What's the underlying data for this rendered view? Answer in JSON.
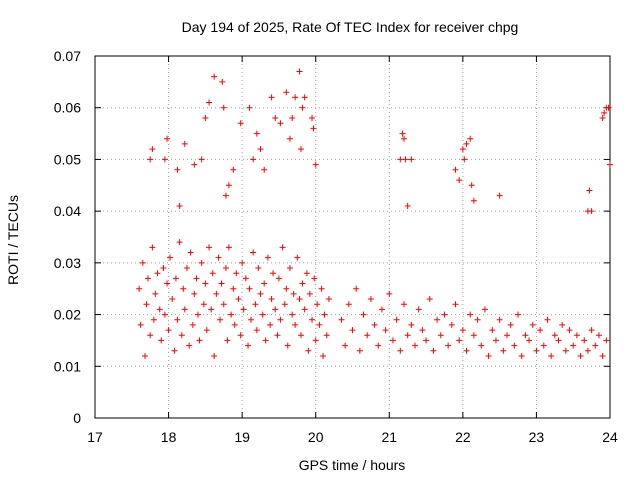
{
  "chart_data": {
    "type": "scatter",
    "title": "Day 194 of 2025, Rate Of TEC Index for receiver chpg",
    "xlabel": "GPS time / hours",
    "ylabel": "ROTI / TECUs",
    "xlim": [
      17,
      24
    ],
    "ylim": [
      0,
      0.07
    ],
    "xticks": [
      "17",
      "18",
      "19",
      "20",
      "21",
      "22",
      "23",
      "24"
    ],
    "yticks": [
      "0",
      "0.01",
      "0.02",
      "0.03",
      "0.04",
      "0.05",
      "0.06",
      "0.07"
    ],
    "grid": true,
    "marker": "plus",
    "color": "#ff0000",
    "series": [
      {
        "x": [
          17.6,
          17.62,
          17.65,
          17.68,
          17.7,
          17.72,
          17.75,
          17.78,
          17.8,
          17.82,
          17.85,
          17.88,
          17.9,
          17.93,
          17.95,
          17.98,
          18.0,
          18.02,
          18.05,
          18.08,
          18.1,
          18.12,
          18.15,
          18.18,
          18.2,
          18.22,
          18.25,
          18.28,
          18.3,
          18.33,
          18.35,
          18.38,
          18.4,
          18.42,
          18.45,
          18.48,
          18.5,
          18.52,
          18.55,
          18.58,
          18.6,
          18.62,
          18.65,
          18.68,
          18.7,
          18.72,
          18.75,
          18.78,
          18.8,
          18.82,
          18.85,
          18.88,
          18.9,
          18.92,
          18.95,
          18.98,
          19.0,
          19.02,
          19.05,
          19.08,
          19.1,
          19.12,
          19.15,
          19.18,
          19.2,
          19.22,
          19.25,
          19.28,
          19.3,
          19.32,
          19.35,
          19.38,
          19.4,
          19.42,
          19.45,
          19.48,
          19.5,
          19.52,
          19.55,
          19.58,
          19.6,
          19.62,
          19.65,
          19.68,
          19.7,
          19.72,
          19.75,
          19.78,
          19.8,
          19.82,
          19.85,
          19.88,
          19.9,
          19.92,
          19.95,
          19.98,
          20.0,
          20.02,
          20.05,
          20.08,
          20.1,
          20.12,
          20.15,
          20.18,
          20.35,
          20.4,
          20.45,
          20.5,
          20.55,
          20.6,
          20.65,
          20.7,
          20.75,
          20.8,
          20.85,
          20.9,
          20.95,
          21.0,
          21.05,
          21.1,
          21.15,
          21.2,
          21.25,
          21.3,
          21.35,
          21.4,
          21.45,
          21.5,
          21.55,
          21.6,
          21.65,
          21.7,
          21.75,
          21.8,
          21.85,
          21.9,
          21.95,
          22.0,
          22.05,
          22.1,
          22.15,
          22.2,
          22.25,
          22.3,
          22.35,
          22.4,
          22.45,
          22.5,
          22.55,
          22.6,
          22.65,
          22.7,
          22.75,
          22.8,
          22.85,
          22.9,
          22.95,
          23.0,
          23.05,
          23.1,
          23.15,
          23.2,
          23.25,
          23.3,
          23.35,
          23.4,
          23.45,
          23.5,
          23.55,
          23.6,
          23.65,
          23.7,
          23.75,
          23.8,
          23.85,
          23.9,
          23.95,
          24.0,
          17.75,
          17.78,
          17.95,
          17.98,
          18.12,
          18.15,
          18.22,
          18.35,
          18.45,
          18.5,
          18.55,
          18.62,
          18.73,
          18.75,
          18.78,
          18.82,
          18.88,
          18.98,
          19.1,
          19.15,
          19.2,
          19.25,
          19.3,
          19.4,
          19.45,
          19.52,
          19.6,
          19.65,
          19.68,
          19.72,
          19.78,
          19.8,
          19.82,
          19.85,
          19.95,
          19.97,
          20.0,
          21.15,
          21.18,
          21.2,
          21.22,
          21.25,
          21.3,
          21.9,
          21.95,
          22.0,
          22.02,
          22.05,
          22.1,
          22.12,
          22.15,
          22.5,
          23.7,
          23.72,
          23.75,
          23.9,
          23.92,
          23.95,
          23.98
        ],
        "y": [
          0.025,
          0.018,
          0.03,
          0.012,
          0.022,
          0.027,
          0.016,
          0.033,
          0.019,
          0.024,
          0.028,
          0.021,
          0.015,
          0.029,
          0.02,
          0.026,
          0.017,
          0.031,
          0.023,
          0.013,
          0.027,
          0.019,
          0.034,
          0.016,
          0.025,
          0.021,
          0.029,
          0.014,
          0.032,
          0.018,
          0.024,
          0.027,
          0.02,
          0.015,
          0.03,
          0.022,
          0.026,
          0.017,
          0.033,
          0.021,
          0.028,
          0.012,
          0.024,
          0.031,
          0.019,
          0.026,
          0.022,
          0.029,
          0.015,
          0.033,
          0.02,
          0.025,
          0.018,
          0.028,
          0.023,
          0.016,
          0.03,
          0.021,
          0.027,
          0.014,
          0.025,
          0.019,
          0.032,
          0.022,
          0.017,
          0.029,
          0.024,
          0.02,
          0.026,
          0.015,
          0.031,
          0.018,
          0.023,
          0.028,
          0.021,
          0.016,
          0.027,
          0.019,
          0.033,
          0.022,
          0.025,
          0.014,
          0.029,
          0.02,
          0.024,
          0.018,
          0.031,
          0.023,
          0.016,
          0.026,
          0.021,
          0.028,
          0.013,
          0.024,
          0.019,
          0.027,
          0.015,
          0.022,
          0.018,
          0.025,
          0.012,
          0.02,
          0.016,
          0.023,
          0.019,
          0.014,
          0.022,
          0.017,
          0.025,
          0.013,
          0.02,
          0.016,
          0.023,
          0.018,
          0.014,
          0.021,
          0.017,
          0.024,
          0.015,
          0.019,
          0.013,
          0.022,
          0.016,
          0.018,
          0.014,
          0.021,
          0.017,
          0.015,
          0.023,
          0.013,
          0.019,
          0.016,
          0.02,
          0.014,
          0.018,
          0.022,
          0.015,
          0.017,
          0.013,
          0.02,
          0.016,
          0.019,
          0.014,
          0.021,
          0.012,
          0.017,
          0.015,
          0.019,
          0.013,
          0.016,
          0.018,
          0.014,
          0.02,
          0.012,
          0.016,
          0.015,
          0.018,
          0.013,
          0.017,
          0.014,
          0.019,
          0.012,
          0.016,
          0.015,
          0.018,
          0.013,
          0.017,
          0.014,
          0.016,
          0.012,
          0.015,
          0.013,
          0.017,
          0.014,
          0.016,
          0.012,
          0.015,
          0.049,
          0.05,
          0.052,
          0.05,
          0.054,
          0.048,
          0.041,
          0.053,
          0.049,
          0.05,
          0.058,
          0.061,
          0.066,
          0.065,
          0.06,
          0.043,
          0.045,
          0.048,
          0.057,
          0.06,
          0.05,
          0.055,
          0.052,
          0.048,
          0.062,
          0.058,
          0.057,
          0.063,
          0.054,
          0.058,
          0.062,
          0.067,
          0.052,
          0.06,
          0.062,
          0.058,
          0.056,
          0.049,
          0.05,
          0.055,
          0.054,
          0.05,
          0.041,
          0.05,
          0.048,
          0.046,
          0.052,
          0.05,
          0.053,
          0.054,
          0.045,
          0.042,
          0.043,
          0.04,
          0.044,
          0.04,
          0.058,
          0.059,
          0.06,
          0.06
        ]
      }
    ]
  }
}
